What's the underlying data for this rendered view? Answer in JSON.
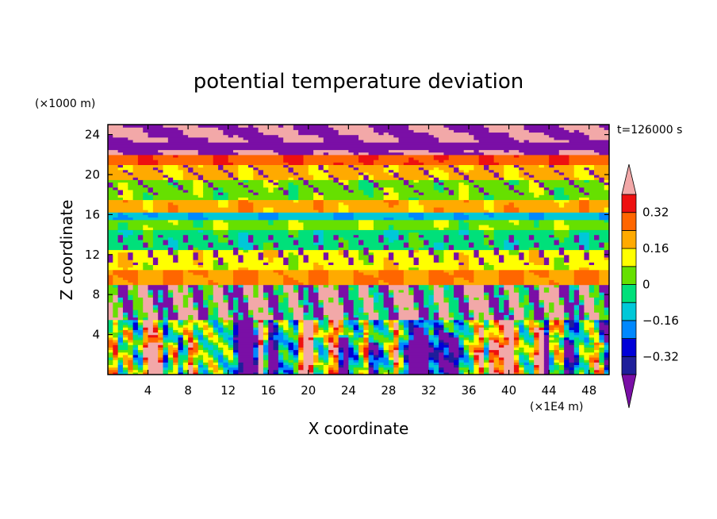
{
  "chart_data": {
    "type": "heatmap",
    "title": "potential temperature deviation",
    "time_label": "t=126000 s",
    "xlabel": "X coordinate",
    "ylabel": "Z coordinate",
    "x_unit_label": "(×1E4 m)",
    "y_unit_label": "(×1000 m)",
    "xlim": [
      0,
      50
    ],
    "ylim": [
      0,
      25
    ],
    "x_ticks": [
      4,
      8,
      12,
      16,
      20,
      24,
      28,
      32,
      36,
      40,
      44,
      48
    ],
    "y_ticks": [
      4,
      8,
      12,
      16,
      20,
      24
    ],
    "colorbar": {
      "levels": [
        -0.4,
        -0.32,
        -0.24,
        -0.16,
        -0.08,
        0,
        0.08,
        0.16,
        0.24,
        0.32,
        0.4
      ],
      "labeled_levels": [
        -0.32,
        -0.16,
        0,
        0.16,
        0.32
      ],
      "labels": [
        "0.32",
        "0.16",
        "0",
        "−0.16",
        "−0.32"
      ],
      "colors": [
        "#7a0fa6",
        "#1f1f9a",
        "#0000d8",
        "#0088ff",
        "#00c8d8",
        "#00e07a",
        "#66e000",
        "#ffff00",
        "#ffaa00",
        "#ff6600",
        "#ee1010",
        "#f2a8a8"
      ],
      "extend": "both"
    },
    "z_profile": [
      {
        "z_range": [
          0,
          5.5
        ],
        "value": "mixed, strongly fluctuating (−0.4 to 0.4) in vertical plumes"
      },
      {
        "z_range": [
          5.5,
          9
        ],
        "value": "mixed, dominated by −0.4 and 0.4 overshoot"
      },
      {
        "z_range": [
          9,
          10.5
        ],
        "value": 0.24
      },
      {
        "z_range": [
          10.5,
          12.5
        ],
        "value": 0.12
      },
      {
        "z_range": [
          12.5,
          14.5
        ],
        "value": -0.04
      },
      {
        "z_range": [
          14.5,
          15.6
        ],
        "value": 0.05
      },
      {
        "z_range": [
          15.6,
          16.2
        ],
        "value": -0.14
      },
      {
        "z_range": [
          16.2,
          17.5
        ],
        "value": 0.2
      },
      {
        "z_range": [
          17.5,
          19.5
        ],
        "value": 0.04
      },
      {
        "z_range": [
          19.5,
          21
        ],
        "value": 0.18
      },
      {
        "z_range": [
          21,
          22
        ],
        "value": 0.3
      },
      {
        "z_range": [
          22,
          25
        ],
        "value": "mixed −0.4 and 0.4"
      }
    ]
  }
}
